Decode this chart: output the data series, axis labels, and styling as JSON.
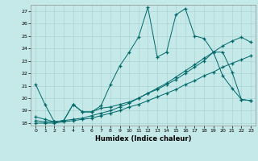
{
  "xlabel": "Humidex (Indice chaleur)",
  "bg_color": "#c5e8e8",
  "line_color": "#006868",
  "grid_color": "#aad4d4",
  "xlim": [
    -0.5,
    23.5
  ],
  "ylim": [
    17.8,
    27.5
  ],
  "yticks": [
    18,
    19,
    20,
    21,
    22,
    23,
    24,
    25,
    26,
    27
  ],
  "xticks": [
    0,
    1,
    2,
    3,
    4,
    5,
    6,
    7,
    8,
    9,
    10,
    11,
    12,
    13,
    14,
    15,
    16,
    17,
    18,
    19,
    20,
    21,
    22,
    23
  ],
  "line1_y": [
    21.1,
    19.5,
    18.1,
    18.2,
    19.5,
    18.9,
    18.9,
    19.4,
    21.1,
    22.6,
    23.7,
    24.9,
    27.3,
    23.3,
    23.7,
    26.7,
    27.2,
    25.0,
    24.8,
    23.7,
    21.8,
    20.8,
    19.9,
    19.8
  ],
  "line2_y": [
    18.5,
    18.3,
    18.1,
    18.2,
    19.5,
    18.9,
    18.9,
    19.2,
    19.3,
    19.5,
    19.7,
    20.0,
    20.4,
    20.7,
    21.1,
    21.5,
    22.0,
    22.5,
    23.0,
    23.7,
    23.7,
    22.1,
    19.9,
    19.8
  ],
  "line3_y": [
    18.2,
    18.1,
    18.1,
    18.2,
    18.3,
    18.4,
    18.6,
    18.8,
    19.0,
    19.3,
    19.6,
    20.0,
    20.4,
    20.8,
    21.2,
    21.7,
    22.2,
    22.7,
    23.2,
    23.7,
    24.2,
    24.6,
    24.9,
    24.5
  ],
  "line4_y": [
    18.0,
    18.0,
    18.0,
    18.1,
    18.2,
    18.3,
    18.4,
    18.6,
    18.8,
    19.0,
    19.3,
    19.5,
    19.8,
    20.1,
    20.4,
    20.7,
    21.1,
    21.4,
    21.8,
    22.1,
    22.5,
    22.8,
    23.1,
    23.4
  ]
}
